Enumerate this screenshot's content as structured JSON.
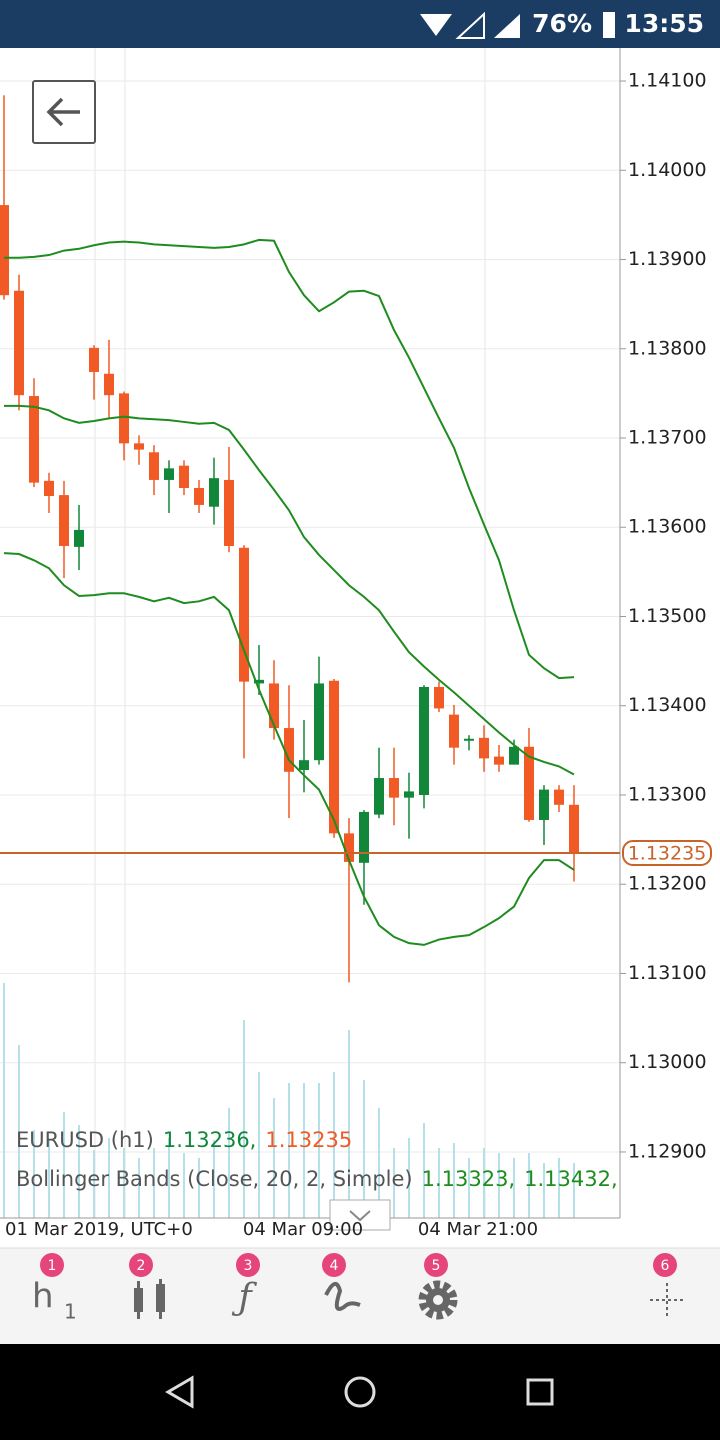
{
  "status_bar": {
    "battery": "76%",
    "time": "13:55"
  },
  "chart_data": {
    "type": "candlestick",
    "ylim": [
      1.12826,
      1.14137
    ],
    "yticks": [
      {
        "value": 1.141,
        "label": "1.14100"
      },
      {
        "value": 1.14,
        "label": "1.14000"
      },
      {
        "value": 1.139,
        "label": "1.13900"
      },
      {
        "value": 1.138,
        "label": "1.13800"
      },
      {
        "value": 1.137,
        "label": "1.13700"
      },
      {
        "value": 1.136,
        "label": "1.13600"
      },
      {
        "value": 1.135,
        "label": "1.13500"
      },
      {
        "value": 1.134,
        "label": "1.13400"
      },
      {
        "value": 1.133,
        "label": "1.13300"
      },
      {
        "value": 1.132,
        "label": "1.13200"
      },
      {
        "value": 1.131,
        "label": "1.13100"
      },
      {
        "value": 1.13,
        "label": "1.13000"
      },
      {
        "value": 1.129,
        "label": "1.12900"
      }
    ],
    "x_labels": [
      "01 Mar 2019, UTC+0",
      "04 Mar 09:00",
      "04 Mar 21:00"
    ],
    "open": [
      1.13961,
      1.13865,
      1.13747,
      1.13652,
      1.13636,
      1.13578,
      1.13801,
      1.13772,
      1.1375,
      1.13694,
      1.13684,
      1.13653,
      1.13669,
      1.13644,
      1.13623,
      1.13653,
      1.13577,
      1.13425,
      1.13425,
      1.13375,
      1.13328,
      1.13339,
      1.13428,
      1.13257,
      1.13224,
      1.13278,
      1.13319,
      1.13297,
      1.133,
      1.13421,
      1.1339,
      1.13361,
      1.13364,
      1.13343,
      1.13334,
      1.13354,
      1.13272,
      1.13306,
      1.13289
    ],
    "high": [
      1.14084,
      1.13883,
      1.13767,
      1.13661,
      1.13652,
      1.13625,
      1.13804,
      1.1381,
      1.13752,
      1.13703,
      1.13692,
      1.13675,
      1.13675,
      1.13653,
      1.13678,
      1.1369,
      1.1358,
      1.13468,
      1.13451,
      1.13423,
      1.13384,
      1.13455,
      1.1343,
      1.13274,
      1.13283,
      1.13353,
      1.13353,
      1.13325,
      1.13423,
      1.13427,
      1.13401,
      1.13367,
      1.13378,
      1.13356,
      1.13362,
      1.13375,
      1.13311,
      1.13311,
      1.13311
    ],
    "low": [
      1.13855,
      1.13731,
      1.13645,
      1.13616,
      1.13543,
      1.13552,
      1.13743,
      1.13722,
      1.13675,
      1.1367,
      1.13636,
      1.13616,
      1.13636,
      1.13616,
      1.13603,
      1.13572,
      1.13341,
      1.13412,
      1.13362,
      1.13274,
      1.13303,
      1.13334,
      1.13252,
      1.1309,
      1.13177,
      1.13274,
      1.13266,
      1.13251,
      1.13285,
      1.13393,
      1.13334,
      1.1335,
      1.13326,
      1.13326,
      1.13334,
      1.1327,
      1.13244,
      1.13281,
      1.13203
    ],
    "close": [
      1.1386,
      1.13748,
      1.1365,
      1.13635,
      1.13579,
      1.13597,
      1.13774,
      1.13748,
      1.13694,
      1.13687,
      1.13653,
      1.13666,
      1.13644,
      1.13625,
      1.13655,
      1.13579,
      1.13427,
      1.13429,
      1.13375,
      1.13326,
      1.13339,
      1.13425,
      1.13257,
      1.13225,
      1.13281,
      1.13319,
      1.13297,
      1.13304,
      1.13421,
      1.13397,
      1.13353,
      1.13363,
      1.13341,
      1.13334,
      1.13354,
      1.13272,
      1.13306,
      1.13289,
      1.13235
    ],
    "volume": [
      235,
      173,
      88,
      78,
      106,
      93,
      68,
      80,
      70,
      60,
      70,
      80,
      65,
      60,
      78,
      110,
      198,
      146,
      120,
      135,
      135,
      135,
      146,
      188,
      138,
      110,
      70,
      80,
      95,
      70,
      75,
      60,
      70,
      65,
      60,
      65,
      55,
      60,
      55
    ],
    "bands": {
      "upper": [
        1.13902,
        1.13902,
        1.13903,
        1.13905,
        1.1391,
        1.13912,
        1.13916,
        1.13919,
        1.1392,
        1.13919,
        1.13917,
        1.13916,
        1.13915,
        1.13914,
        1.13913,
        1.13914,
        1.13917,
        1.13922,
        1.13921,
        1.13886,
        1.1386,
        1.13842,
        1.13852,
        1.13864,
        1.13865,
        1.13859,
        1.13821,
        1.1379,
        1.13756,
        1.13722,
        1.13689,
        1.13644,
        1.13603,
        1.13563,
        1.13507,
        1.13457,
        1.13442,
        1.13431,
        1.13432
      ],
      "middle": [
        1.13736,
        1.13736,
        1.13735,
        1.13731,
        1.13722,
        1.13717,
        1.13719,
        1.13722,
        1.13724,
        1.13722,
        1.13721,
        1.1372,
        1.13718,
        1.13716,
        1.13717,
        1.13709,
        1.13687,
        1.13664,
        1.13642,
        1.13619,
        1.13589,
        1.13569,
        1.13552,
        1.13535,
        1.13522,
        1.13507,
        1.13483,
        1.1346,
        1.13444,
        1.13429,
        1.13415,
        1.134,
        1.13385,
        1.1337,
        1.13356,
        1.13343,
        1.13337,
        1.13332,
        1.13323
      ],
      "lower": [
        1.13571,
        1.1357,
        1.13563,
        1.13554,
        1.13535,
        1.13523,
        1.13524,
        1.13526,
        1.13526,
        1.13522,
        1.13517,
        1.13521,
        1.13515,
        1.13517,
        1.13522,
        1.13507,
        1.13462,
        1.13418,
        1.13378,
        1.13339,
        1.13322,
        1.13306,
        1.13272,
        1.13227,
        1.13186,
        1.13154,
        1.13141,
        1.13134,
        1.13132,
        1.13138,
        1.13141,
        1.13143,
        1.13152,
        1.13162,
        1.13175,
        1.13207,
        1.13227,
        1.13227,
        1.13216
      ]
    },
    "current_price": {
      "value": 1.13235,
      "label": "1.13235"
    },
    "symbol_legend": {
      "label": "EURUSD (h1)",
      "bid": "1.13236,",
      "ask": "1.13235"
    },
    "indicator_legend": {
      "label": "Bollinger Bands (Close, 20, 2, Simple)",
      "middle": "1.13323,",
      "upper": "1.13432,"
    },
    "up_color": "#12873a",
    "down_color": "#f15a24",
    "band_color": "#1e8c1e",
    "volume_color": "#b4e0ea"
  },
  "toolbar": {
    "timeframe": "h",
    "timeframe_sub": "1",
    "badges": [
      1,
      2,
      3,
      4,
      5,
      6
    ]
  }
}
